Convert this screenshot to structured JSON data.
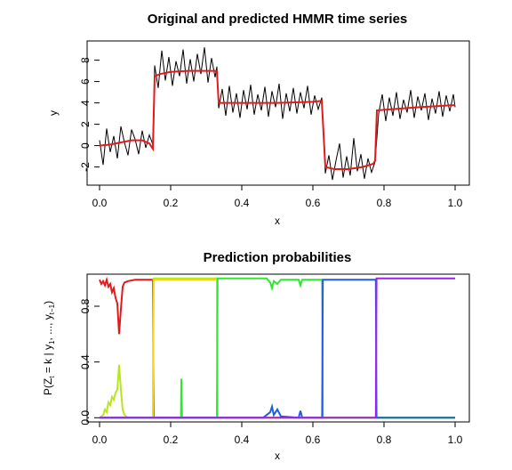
{
  "chart_data": [
    {
      "type": "line",
      "title": "Original and predicted HMMR time series",
      "xlabel": "x",
      "ylabel": "y",
      "xlim": [
        0,
        1
      ],
      "ylim": [
        -3.5,
        10
      ],
      "x_ticks": [
        "0.0",
        "0.2",
        "0.4",
        "0.6",
        "0.8",
        "1.0"
      ],
      "y_ticks": [
        "-2",
        "0",
        "2",
        "4",
        "6",
        "8"
      ],
      "series": [
        {
          "role": "original",
          "color": "#000000",
          "points": [
            [
              0.0,
              0.5
            ],
            [
              0.01,
              -1.8
            ],
            [
              0.02,
              1.6
            ],
            [
              0.03,
              -0.6
            ],
            [
              0.04,
              0.9
            ],
            [
              0.05,
              -1.2
            ],
            [
              0.06,
              1.8
            ],
            [
              0.07,
              0.3
            ],
            [
              0.08,
              -0.9
            ],
            [
              0.09,
              1.5
            ],
            [
              0.1,
              0.6
            ],
            [
              0.11,
              -0.8
            ],
            [
              0.12,
              1.4
            ],
            [
              0.13,
              -0.2
            ],
            [
              0.14,
              1.0
            ],
            [
              0.15,
              0.1
            ],
            [
              0.155,
              7.5
            ],
            [
              0.165,
              5.4
            ],
            [
              0.175,
              8.9
            ],
            [
              0.185,
              6.1
            ],
            [
              0.195,
              8.3
            ],
            [
              0.205,
              5.6
            ],
            [
              0.215,
              7.9
            ],
            [
              0.225,
              6.5
            ],
            [
              0.235,
              9.0
            ],
            [
              0.245,
              5.8
            ],
            [
              0.255,
              8.1
            ],
            [
              0.265,
              6.0
            ],
            [
              0.275,
              8.6
            ],
            [
              0.285,
              6.7
            ],
            [
              0.295,
              9.2
            ],
            [
              0.305,
              5.9
            ],
            [
              0.315,
              8.2
            ],
            [
              0.325,
              6.4
            ],
            [
              0.33,
              7.4
            ],
            [
              0.335,
              3.5
            ],
            [
              0.345,
              5.3
            ],
            [
              0.355,
              2.8
            ],
            [
              0.365,
              5.6
            ],
            [
              0.375,
              3.1
            ],
            [
              0.385,
              4.9
            ],
            [
              0.395,
              2.6
            ],
            [
              0.405,
              5.2
            ],
            [
              0.415,
              3.4
            ],
            [
              0.425,
              5.7
            ],
            [
              0.435,
              2.9
            ],
            [
              0.445,
              4.8
            ],
            [
              0.455,
              3.3
            ],
            [
              0.465,
              5.5
            ],
            [
              0.475,
              2.7
            ],
            [
              0.485,
              5.1
            ],
            [
              0.495,
              3.6
            ],
            [
              0.505,
              5.8
            ],
            [
              0.515,
              2.5
            ],
            [
              0.525,
              4.9
            ],
            [
              0.535,
              3.2
            ],
            [
              0.545,
              5.4
            ],
            [
              0.555,
              3.0
            ],
            [
              0.565,
              5.0
            ],
            [
              0.575,
              3.5
            ],
            [
              0.585,
              5.6
            ],
            [
              0.595,
              2.9
            ],
            [
              0.605,
              4.7
            ],
            [
              0.615,
              3.4
            ],
            [
              0.625,
              4.5
            ],
            [
              0.635,
              -2.6
            ],
            [
              0.645,
              -0.9
            ],
            [
              0.655,
              -3.2
            ],
            [
              0.665,
              -1.4
            ],
            [
              0.675,
              0.2
            ],
            [
              0.685,
              -3.0
            ],
            [
              0.695,
              -1.0
            ],
            [
              0.705,
              -2.8
            ],
            [
              0.715,
              0.7
            ],
            [
              0.725,
              -2.4
            ],
            [
              0.735,
              -0.8
            ],
            [
              0.745,
              -3.1
            ],
            [
              0.755,
              -1.2
            ],
            [
              0.765,
              -2.5
            ],
            [
              0.775,
              -1.5
            ],
            [
              0.785,
              3.0
            ],
            [
              0.795,
              4.8
            ],
            [
              0.805,
              2.3
            ],
            [
              0.815,
              4.5
            ],
            [
              0.825,
              2.8
            ],
            [
              0.835,
              5.0
            ],
            [
              0.845,
              2.5
            ],
            [
              0.855,
              4.3
            ],
            [
              0.865,
              3.1
            ],
            [
              0.875,
              5.2
            ],
            [
              0.885,
              2.6
            ],
            [
              0.895,
              4.6
            ],
            [
              0.905,
              3.3
            ],
            [
              0.915,
              4.9
            ],
            [
              0.925,
              2.4
            ],
            [
              0.935,
              4.4
            ],
            [
              0.945,
              3.0
            ],
            [
              0.955,
              5.1
            ],
            [
              0.965,
              2.7
            ],
            [
              0.975,
              4.7
            ],
            [
              0.985,
              3.2
            ],
            [
              0.995,
              4.8
            ],
            [
              1.0,
              3.6
            ]
          ]
        },
        {
          "role": "predicted",
          "color": "#e31a1c",
          "points": [
            [
              0.0,
              0.0
            ],
            [
              0.03,
              0.1
            ],
            [
              0.06,
              0.3
            ],
            [
              0.09,
              0.5
            ],
            [
              0.12,
              0.5
            ],
            [
              0.14,
              0.2
            ],
            [
              0.15,
              -0.3
            ],
            [
              0.155,
              6.5
            ],
            [
              0.17,
              6.7
            ],
            [
              0.2,
              6.9
            ],
            [
              0.25,
              7.0
            ],
            [
              0.3,
              7.0
            ],
            [
              0.33,
              7.0
            ],
            [
              0.335,
              4.0
            ],
            [
              0.4,
              4.0
            ],
            [
              0.5,
              4.0
            ],
            [
              0.6,
              4.1
            ],
            [
              0.625,
              4.2
            ],
            [
              0.635,
              -2.0
            ],
            [
              0.66,
              -2.2
            ],
            [
              0.7,
              -2.2
            ],
            [
              0.74,
              -2.0
            ],
            [
              0.77,
              -1.7
            ],
            [
              0.775,
              -1.4
            ],
            [
              0.78,
              3.3
            ],
            [
              0.82,
              3.4
            ],
            [
              0.9,
              3.6
            ],
            [
              0.95,
              3.7
            ],
            [
              1.0,
              3.8
            ]
          ]
        }
      ]
    },
    {
      "type": "line",
      "title": "Prediction probabilities",
      "xlabel": "x",
      "ylabel": "P(Z",
      "ylabel_parts": {
        "p1": "P(Z",
        "sub_t": "t",
        "p2": " = k | y",
        "sub_1": "1",
        "p3": ", ..., y",
        "sub_tm1": "t−1",
        "p4": ")"
      },
      "xlim": [
        0,
        1
      ],
      "ylim": [
        0,
        1
      ],
      "x_ticks": [
        "0.0",
        "0.2",
        "0.4",
        "0.6",
        "0.8",
        "1.0"
      ],
      "y_ticks": [
        "0.0",
        "0.4",
        "0.8"
      ],
      "series": [
        {
          "color": "#e31a1c",
          "points": [
            [
              0.0,
              0.99
            ],
            [
              0.005,
              0.96
            ],
            [
              0.01,
              0.98
            ],
            [
              0.015,
              0.95
            ],
            [
              0.02,
              0.99
            ],
            [
              0.025,
              0.94
            ],
            [
              0.03,
              0.96
            ],
            [
              0.035,
              0.9
            ],
            [
              0.04,
              0.93
            ],
            [
              0.045,
              0.86
            ],
            [
              0.05,
              0.82
            ],
            [
              0.055,
              0.6
            ],
            [
              0.06,
              0.78
            ],
            [
              0.065,
              0.94
            ],
            [
              0.07,
              0.97
            ],
            [
              0.08,
              0.98
            ],
            [
              0.1,
              0.99
            ],
            [
              0.15,
              0.99
            ],
            [
              0.152,
              0.0
            ],
            [
              1.0,
              0.0
            ]
          ]
        },
        {
          "color": "#b8e61a",
          "points": [
            [
              0.0,
              0.0
            ],
            [
              0.01,
              0.02
            ],
            [
              0.015,
              0.06
            ],
            [
              0.02,
              0.04
            ],
            [
              0.025,
              0.11
            ],
            [
              0.03,
              0.09
            ],
            [
              0.035,
              0.15
            ],
            [
              0.04,
              0.13
            ],
            [
              0.045,
              0.18
            ],
            [
              0.05,
              0.2
            ],
            [
              0.055,
              0.38
            ],
            [
              0.06,
              0.2
            ],
            [
              0.065,
              0.06
            ],
            [
              0.07,
              0.02
            ],
            [
              0.08,
              0.0
            ],
            [
              0.15,
              0.0
            ],
            [
              0.152,
              1.0
            ],
            [
              0.33,
              1.0
            ],
            [
              0.332,
              0.0
            ],
            [
              1.0,
              0.0
            ]
          ]
        },
        {
          "color": "#ffd21a",
          "points": [
            [
              0.0,
              0.0
            ],
            [
              0.15,
              0.0
            ],
            [
              0.152,
              0.99
            ],
            [
              0.33,
              0.99
            ],
            [
              0.332,
              0.0
            ],
            [
              1.0,
              0.0
            ]
          ]
        },
        {
          "color": "#2ee82e",
          "points": [
            [
              0.0,
              0.0
            ],
            [
              0.229,
              0.0
            ],
            [
              0.23,
              0.28
            ],
            [
              0.232,
              0.0
            ],
            [
              0.33,
              0.0
            ],
            [
              0.332,
              1.0
            ],
            [
              0.47,
              1.0
            ],
            [
              0.48,
              0.97
            ],
            [
              0.485,
              0.93
            ],
            [
              0.49,
              0.98
            ],
            [
              0.5,
              0.96
            ],
            [
              0.51,
              0.99
            ],
            [
              0.56,
              0.99
            ],
            [
              0.565,
              0.95
            ],
            [
              0.57,
              0.99
            ],
            [
              0.626,
              0.99
            ],
            [
              0.628,
              0.0
            ],
            [
              1.0,
              0.0
            ]
          ]
        },
        {
          "color": "#1f5ee0",
          "points": [
            [
              0.0,
              0.0
            ],
            [
              0.46,
              0.0
            ],
            [
              0.47,
              0.02
            ],
            [
              0.48,
              0.04
            ],
            [
              0.485,
              0.08
            ],
            [
              0.49,
              0.02
            ],
            [
              0.5,
              0.06
            ],
            [
              0.51,
              0.01
            ],
            [
              0.56,
              0.0
            ],
            [
              0.565,
              0.05
            ],
            [
              0.57,
              0.0
            ],
            [
              0.626,
              0.0
            ],
            [
              0.628,
              0.99
            ],
            [
              0.777,
              0.99
            ],
            [
              0.779,
              0.0
            ],
            [
              1.0,
              0.0
            ]
          ]
        },
        {
          "color": "#a020f0",
          "points": [
            [
              0.0,
              0.0
            ],
            [
              0.777,
              0.0
            ],
            [
              0.779,
              1.0
            ],
            [
              1.0,
              1.0
            ]
          ]
        }
      ]
    }
  ]
}
